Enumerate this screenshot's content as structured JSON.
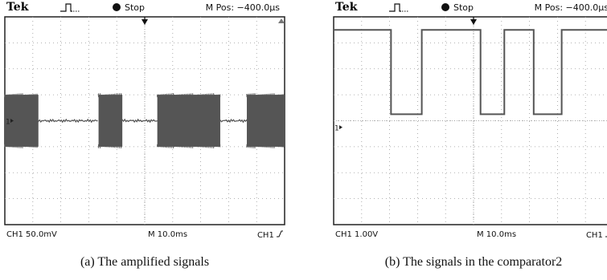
{
  "panels": [
    {
      "brand": "Tek",
      "run_state": "Stop",
      "mpos": "M Pos: −400.0µs",
      "channel_scale": "CH1  50.0mV",
      "timebase": "M 10.0ms",
      "trigger_source": "CH1",
      "caption": "(a) The amplified signals",
      "channel_marker": "1"
    },
    {
      "brand": "Tek",
      "run_state": "Stop",
      "mpos": "M Pos: −400.0µs",
      "channel_scale": "CH1  1.00V",
      "timebase": "M 10.0ms",
      "trigger_source": "CH1",
      "caption": "(b) The signals in the comparator2",
      "channel_marker": "1"
    }
  ],
  "colors": {
    "trace": "#555555",
    "grid": "#9a9a9a",
    "frame": "#222222"
  },
  "chart_data": [
    {
      "type": "line",
      "description_of_trace": "bursts",
      "x_divisions": 10,
      "y_divisions": 8,
      "time_per_div_ms": 10,
      "volts_per_div_mV": 50,
      "segments": [
        {
          "from_div": 0.0,
          "to_div": 1.2,
          "state": "burst"
        },
        {
          "from_div": 1.2,
          "to_div": 3.35,
          "state": "quiet"
        },
        {
          "from_div": 3.35,
          "to_div": 4.2,
          "state": "burst"
        },
        {
          "from_div": 4.2,
          "to_div": 5.45,
          "state": "quiet"
        },
        {
          "from_div": 5.45,
          "to_div": 7.7,
          "state": "burst"
        },
        {
          "from_div": 7.7,
          "to_div": 8.65,
          "state": "quiet"
        },
        {
          "from_div": 8.65,
          "to_div": 10.0,
          "state": "burst"
        }
      ],
      "burst_half_amplitude_div": 1.0,
      "baseline_div": 0
    },
    {
      "type": "line",
      "x_divisions": 10,
      "y_divisions": 8,
      "time_per_div_ms": 10,
      "volts_per_div_V": 1.0,
      "high_div": 3.5,
      "low_div": 0.25,
      "segments": [
        {
          "from_div": 0.0,
          "to_div": 2.05,
          "state": "high"
        },
        {
          "from_div": 2.05,
          "to_div": 3.15,
          "state": "low"
        },
        {
          "from_div": 3.15,
          "to_div": 5.25,
          "state": "high"
        },
        {
          "from_div": 5.25,
          "to_div": 6.1,
          "state": "low"
        },
        {
          "from_div": 6.1,
          "to_div": 7.15,
          "state": "high"
        },
        {
          "from_div": 7.15,
          "to_div": 8.15,
          "state": "low"
        },
        {
          "from_div": 8.15,
          "to_div": 10.0,
          "state": "high"
        }
      ]
    }
  ]
}
